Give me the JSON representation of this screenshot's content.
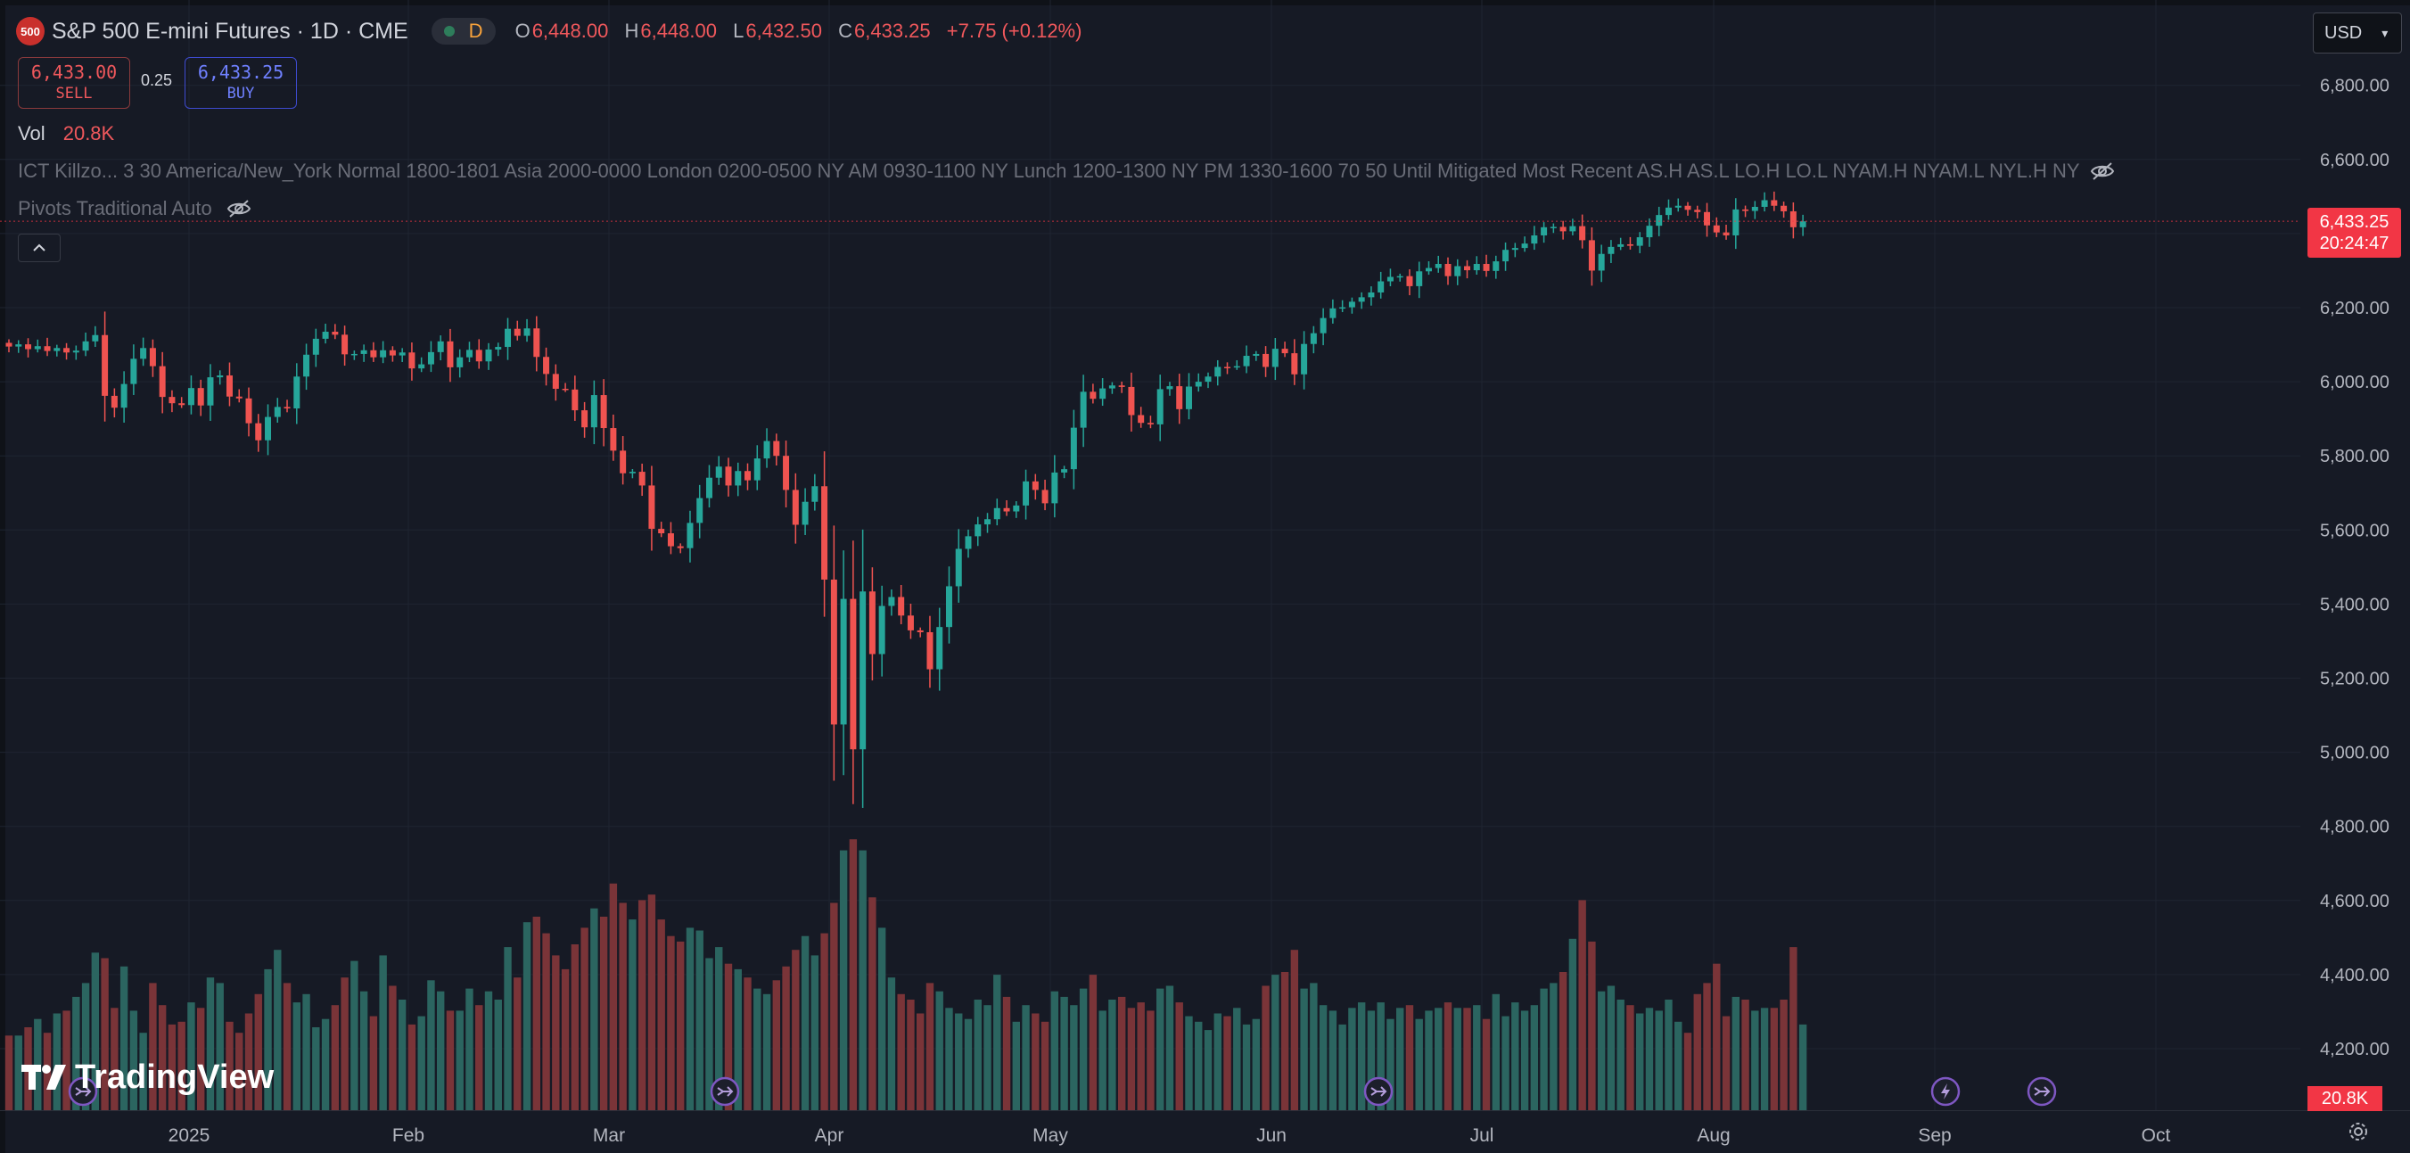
{
  "header": {
    "symbol_badge": "500",
    "title": "S&P 500 E-mini Futures · 1D · CME",
    "resolution_badge": "D",
    "ohlc": {
      "o_label": "O",
      "o": "6,448.00",
      "h_label": "H",
      "h": "6,448.00",
      "l_label": "L",
      "l": "6,432.50",
      "c_label": "C",
      "c": "6,433.25",
      "change": "+7.75 (+0.12%)"
    }
  },
  "trade": {
    "sell_price": "6,433.00",
    "sell_label": "SELL",
    "spread": "0.25",
    "buy_price": "6,433.25",
    "buy_label": "BUY"
  },
  "volume_legend": {
    "label": "Vol",
    "value": "20.8K"
  },
  "indicators": {
    "ict": "ICT Killzo... 3 30 America/New_York Normal 1800-1801 Asia 2000-0000 London 0200-0500 NY AM 0930-1100 NY Lunch 1200-1300 NY PM 1330-1600 70 50 Until Mitigated Most Recent AS.H AS.L LO.H LO.L NYAM.H NYAM.L NYL.H NY",
    "pivots": "Pivots Traditional Auto"
  },
  "currency": "USD",
  "last_price_tag": {
    "price": "6,433.25",
    "countdown": "20:24:47"
  },
  "volume_tag": "20.8K",
  "logo": "TradingView",
  "colors": {
    "up": "#26a69a",
    "down": "#ef5350",
    "vol_up": "#2b6560",
    "vol_down": "#7a3438",
    "background": "#161a25",
    "price_line": "#f23645"
  },
  "icons": [
    "eye-off-icon",
    "chevron-up-icon",
    "chevron-down-icon",
    "event-arrow-icon",
    "lightning-icon",
    "settings-icon",
    "tradingview-logo-icon"
  ],
  "chart_data": {
    "type": "candlestick",
    "price_axis": {
      "ylim": [
        4200,
        6800
      ],
      "ticks": [
        "4,200.00",
        "4,400.00",
        "4,600.00",
        "4,800.00",
        "5,000.00",
        "5,200.00",
        "5,400.00",
        "5,600.00",
        "5,800.00",
        "6,000.00",
        "6,200.00",
        "6,400.00",
        "6,600.00",
        "6,800.00"
      ]
    },
    "time_axis": {
      "labels": [
        "2025",
        "Feb",
        "Mar",
        "Apr",
        "May",
        "Jun",
        "Jul",
        "Aug",
        "Sep",
        "Oct"
      ]
    },
    "last_price": 6433.25,
    "volume_indicator": {
      "last": "20.8K"
    },
    "events": [
      "event-arrow",
      "event-arrow",
      "event-arrow",
      "lightning",
      "event-arrow"
    ],
    "series": [
      {
        "c": 6095,
        "v": 0.27
      },
      {
        "c": 6101,
        "v": 0.27
      },
      {
        "c": 6088,
        "v": 0.3
      },
      {
        "c": 6096,
        "v": 0.33
      },
      {
        "c": 6083,
        "v": 0.28
      },
      {
        "c": 6091,
        "v": 0.35
      },
      {
        "c": 6079,
        "v": 0.36
      },
      {
        "c": 6084,
        "v": 0.41
      },
      {
        "c": 6109,
        "v": 0.46
      },
      {
        "c": 6126,
        "v": 0.57
      },
      {
        "c": 5962,
        "v": 0.55
      },
      {
        "c": 5930,
        "v": 0.37
      },
      {
        "c": 5994,
        "v": 0.52
      },
      {
        "c": 6062,
        "v": 0.36
      },
      {
        "c": 6091,
        "v": 0.28
      },
      {
        "c": 6042,
        "v": 0.46
      },
      {
        "c": 5959,
        "v": 0.38
      },
      {
        "c": 5942,
        "v": 0.31
      },
      {
        "c": 5937,
        "v": 0.32
      },
      {
        "c": 5983,
        "v": 0.39
      },
      {
        "c": 5936,
        "v": 0.37
      },
      {
        "c": 6012,
        "v": 0.48
      },
      {
        "c": 6017,
        "v": 0.46
      },
      {
        "c": 5960,
        "v": 0.32
      },
      {
        "c": 5955,
        "v": 0.28
      },
      {
        "c": 5888,
        "v": 0.35
      },
      {
        "c": 5842,
        "v": 0.42
      },
      {
        "c": 5905,
        "v": 0.51
      },
      {
        "c": 5932,
        "v": 0.58
      },
      {
        "c": 5928,
        "v": 0.46
      },
      {
        "c": 6014,
        "v": 0.39
      },
      {
        "c": 6073,
        "v": 0.42
      },
      {
        "c": 6116,
        "v": 0.3
      },
      {
        "c": 6135,
        "v": 0.33
      },
      {
        "c": 6127,
        "v": 0.38
      },
      {
        "c": 6074,
        "v": 0.48
      },
      {
        "c": 6075,
        "v": 0.54
      },
      {
        "c": 6085,
        "v": 0.43
      },
      {
        "c": 6066,
        "v": 0.34
      },
      {
        "c": 6085,
        "v": 0.56
      },
      {
        "c": 6071,
        "v": 0.45
      },
      {
        "c": 6079,
        "v": 0.4
      },
      {
        "c": 6036,
        "v": 0.31
      },
      {
        "c": 6047,
        "v": 0.34
      },
      {
        "c": 6080,
        "v": 0.47
      },
      {
        "c": 6109,
        "v": 0.43
      },
      {
        "c": 6039,
        "v": 0.36
      },
      {
        "c": 6066,
        "v": 0.36
      },
      {
        "c": 6086,
        "v": 0.44
      },
      {
        "c": 6055,
        "v": 0.38
      },
      {
        "c": 6087,
        "v": 0.43
      },
      {
        "c": 6094,
        "v": 0.4
      },
      {
        "c": 6143,
        "v": 0.59
      },
      {
        "c": 6124,
        "v": 0.48
      },
      {
        "c": 6144,
        "v": 0.68
      },
      {
        "c": 6067,
        "v": 0.7
      },
      {
        "c": 6021,
        "v": 0.64
      },
      {
        "c": 5981,
        "v": 0.56
      },
      {
        "c": 5979,
        "v": 0.51
      },
      {
        "c": 5923,
        "v": 0.6
      },
      {
        "c": 5877,
        "v": 0.66
      },
      {
        "c": 5964,
        "v": 0.73
      },
      {
        "c": 5875,
        "v": 0.7
      },
      {
        "c": 5814,
        "v": 0.82
      },
      {
        "c": 5753,
        "v": 0.75
      },
      {
        "c": 5757,
        "v": 0.69
      },
      {
        "c": 5720,
        "v": 0.76
      },
      {
        "c": 5603,
        "v": 0.78
      },
      {
        "c": 5591,
        "v": 0.69
      },
      {
        "c": 5556,
        "v": 0.63
      },
      {
        "c": 5551,
        "v": 0.61
      },
      {
        "c": 5619,
        "v": 0.66
      },
      {
        "c": 5686,
        "v": 0.65
      },
      {
        "c": 5741,
        "v": 0.55
      },
      {
        "c": 5771,
        "v": 0.59
      },
      {
        "c": 5720,
        "v": 0.53
      },
      {
        "c": 5759,
        "v": 0.51
      },
      {
        "c": 5734,
        "v": 0.48
      },
      {
        "c": 5793,
        "v": 0.44
      },
      {
        "c": 5840,
        "v": 0.42
      },
      {
        "c": 5800,
        "v": 0.47
      },
      {
        "c": 5708,
        "v": 0.52
      },
      {
        "c": 5614,
        "v": 0.58
      },
      {
        "c": 5676,
        "v": 0.63
      },
      {
        "c": 5718,
        "v": 0.56
      },
      {
        "c": 5466,
        "v": 0.64
      },
      {
        "c": 5075,
        "v": 0.75
      },
      {
        "c": 5414,
        "v": 0.94
      },
      {
        "c": 5008,
        "v": 0.98
      },
      {
        "c": 5434,
        "v": 0.94
      },
      {
        "c": 5265,
        "v": 0.77
      },
      {
        "c": 5395,
        "v": 0.66
      },
      {
        "c": 5419,
        "v": 0.48
      },
      {
        "c": 5369,
        "v": 0.42
      },
      {
        "c": 5329,
        "v": 0.4
      },
      {
        "c": 5324,
        "v": 0.35
      },
      {
        "c": 5224,
        "v": 0.46
      },
      {
        "c": 5338,
        "v": 0.43
      },
      {
        "c": 5448,
        "v": 0.37
      },
      {
        "c": 5549,
        "v": 0.35
      },
      {
        "c": 5583,
        "v": 0.33
      },
      {
        "c": 5615,
        "v": 0.4
      },
      {
        "c": 5629,
        "v": 0.38
      },
      {
        "c": 5659,
        "v": 0.49
      },
      {
        "c": 5650,
        "v": 0.41
      },
      {
        "c": 5666,
        "v": 0.32
      },
      {
        "c": 5731,
        "v": 0.38
      },
      {
        "c": 5708,
        "v": 0.35
      },
      {
        "c": 5672,
        "v": 0.32
      },
      {
        "c": 5755,
        "v": 0.43
      },
      {
        "c": 5764,
        "v": 0.41
      },
      {
        "c": 5876,
        "v": 0.38
      },
      {
        "c": 5973,
        "v": 0.44
      },
      {
        "c": 5954,
        "v": 0.49
      },
      {
        "c": 5982,
        "v": 0.36
      },
      {
        "c": 5990,
        "v": 0.4
      },
      {
        "c": 5986,
        "v": 0.41
      },
      {
        "c": 5910,
        "v": 0.37
      },
      {
        "c": 5889,
        "v": 0.39
      },
      {
        "c": 5885,
        "v": 0.36
      },
      {
        "c": 5980,
        "v": 0.44
      },
      {
        "c": 5988,
        "v": 0.45
      },
      {
        "c": 5926,
        "v": 0.39
      },
      {
        "c": 5987,
        "v": 0.34
      },
      {
        "c": 6000,
        "v": 0.32
      },
      {
        "c": 6014,
        "v": 0.29
      },
      {
        "c": 6040,
        "v": 0.35
      },
      {
        "c": 6039,
        "v": 0.34
      },
      {
        "c": 6042,
        "v": 0.37
      },
      {
        "c": 6070,
        "v": 0.31
      },
      {
        "c": 6075,
        "v": 0.33
      },
      {
        "c": 6040,
        "v": 0.45
      },
      {
        "c": 6089,
        "v": 0.49
      },
      {
        "c": 6077,
        "v": 0.5
      },
      {
        "c": 6020,
        "v": 0.58
      },
      {
        "c": 6102,
        "v": 0.44
      },
      {
        "c": 6131,
        "v": 0.46
      },
      {
        "c": 6172,
        "v": 0.38
      },
      {
        "c": 6198,
        "v": 0.36
      },
      {
        "c": 6201,
        "v": 0.31
      },
      {
        "c": 6216,
        "v": 0.37
      },
      {
        "c": 6228,
        "v": 0.39
      },
      {
        "c": 6241,
        "v": 0.36
      },
      {
        "c": 6271,
        "v": 0.39
      },
      {
        "c": 6283,
        "v": 0.33
      },
      {
        "c": 6285,
        "v": 0.37
      },
      {
        "c": 6258,
        "v": 0.38
      },
      {
        "c": 6298,
        "v": 0.33
      },
      {
        "c": 6307,
        "v": 0.36
      },
      {
        "c": 6318,
        "v": 0.37
      },
      {
        "c": 6285,
        "v": 0.39
      },
      {
        "c": 6312,
        "v": 0.37
      },
      {
        "c": 6301,
        "v": 0.37
      },
      {
        "c": 6318,
        "v": 0.38
      },
      {
        "c": 6299,
        "v": 0.33
      },
      {
        "c": 6325,
        "v": 0.42
      },
      {
        "c": 6356,
        "v": 0.34
      },
      {
        "c": 6361,
        "v": 0.39
      },
      {
        "c": 6373,
        "v": 0.36
      },
      {
        "c": 6395,
        "v": 0.38
      },
      {
        "c": 6417,
        "v": 0.44
      },
      {
        "c": 6418,
        "v": 0.46
      },
      {
        "c": 6406,
        "v": 0.5
      },
      {
        "c": 6420,
        "v": 0.62
      },
      {
        "c": 6382,
        "v": 0.76
      },
      {
        "c": 6300,
        "v": 0.61
      },
      {
        "c": 6345,
        "v": 0.43
      },
      {
        "c": 6364,
        "v": 0.45
      },
      {
        "c": 6371,
        "v": 0.4
      },
      {
        "c": 6367,
        "v": 0.38
      },
      {
        "c": 6390,
        "v": 0.35
      },
      {
        "c": 6421,
        "v": 0.37
      },
      {
        "c": 6450,
        "v": 0.36
      },
      {
        "c": 6470,
        "v": 0.4
      },
      {
        "c": 6475,
        "v": 0.32
      },
      {
        "c": 6464,
        "v": 0.28
      },
      {
        "c": 6458,
        "v": 0.42
      },
      {
        "c": 6422,
        "v": 0.46
      },
      {
        "c": 6403,
        "v": 0.53
      },
      {
        "c": 6395,
        "v": 0.34
      },
      {
        "c": 6465,
        "v": 0.41
      },
      {
        "c": 6461,
        "v": 0.4
      },
      {
        "c": 6472,
        "v": 0.36
      },
      {
        "c": 6490,
        "v": 0.37
      },
      {
        "c": 6475,
        "v": 0.37
      },
      {
        "c": 6460,
        "v": 0.4
      },
      {
        "c": 6417,
        "v": 0.59
      },
      {
        "c": 6433,
        "v": 0.31
      }
    ]
  }
}
